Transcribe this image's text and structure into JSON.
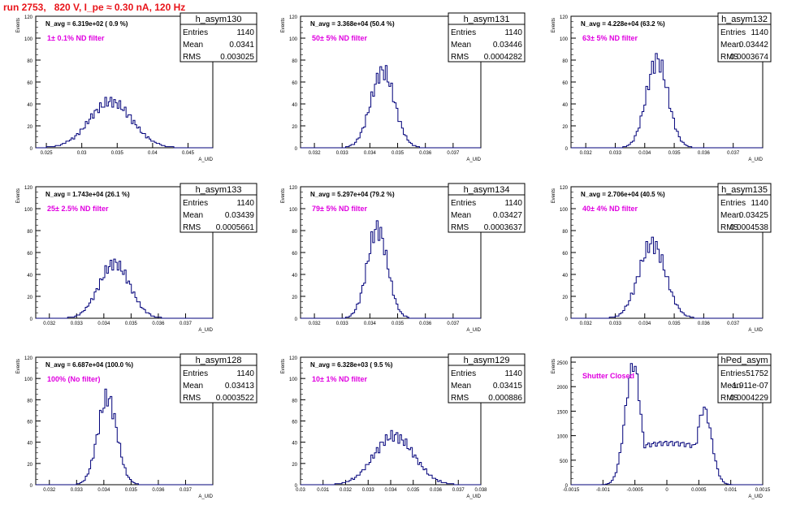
{
  "run_title": "run 2753,   820 V, I_pe ≈ 0.30 nA, 120 Hz",
  "colors": {
    "title": "#e8141a",
    "hist": "#00007a",
    "filter_label": "#e000e0",
    "frame": "#000000"
  },
  "y_axis_label": "Events",
  "x_axis_label": "A_UID",
  "stat_labels": {
    "entries": "Entries",
    "mean": "Mean",
    "rms": "RMS"
  },
  "chart_data": [
    {
      "type": "bar",
      "name": "h_asym130",
      "navg": "N_avg = 6.319e+02 ( 0.9 %)",
      "filter": "1± 0.1% ND filter",
      "entries": "1140",
      "mean": "0.0341",
      "rms": "0.003025",
      "xlim": [
        0.0235,
        0.0485
      ],
      "ylim": [
        0,
        120
      ],
      "xticks": [
        0.025,
        0.03,
        0.035,
        0.04,
        0.045
      ],
      "xtick_labels": [
        "0.025",
        "0.03",
        "0.035",
        "0.04",
        "0.045"
      ],
      "yticks": [
        0,
        20,
        40,
        60,
        80,
        100,
        120
      ],
      "dist": {
        "type": "gauss",
        "mean": 0.0341,
        "sigma": 0.003025,
        "peak": 42,
        "nbins": 100
      }
    },
    {
      "type": "bar",
      "name": "h_asym131",
      "navg": "N_avg = 3.368e+04 (50.4 %)",
      "filter": "50± 5% ND filter",
      "entries": "1140",
      "mean": "0.03446",
      "rms": "0.0004282",
      "xlim": [
        0.0315,
        0.038
      ],
      "ylim": [
        0,
        120
      ],
      "xticks": [
        0.032,
        0.033,
        0.034,
        0.035,
        0.036,
        0.037
      ],
      "xtick_labels": [
        "0.032",
        "0.033",
        "0.034",
        "0.035",
        "0.036",
        "0.037"
      ],
      "yticks": [
        0,
        20,
        40,
        60,
        80,
        100,
        120
      ],
      "dist": {
        "type": "gauss",
        "mean": 0.03446,
        "sigma": 0.0004282,
        "peak": 70,
        "nbins": 100
      }
    },
    {
      "type": "bar",
      "name": "h_asym132",
      "navg": "N_avg = 4.228e+04 (63.2 %)",
      "filter": "63± 5% ND filter",
      "entries": "1140",
      "mean": "0.03442",
      "rms": "0.0003674",
      "xlim": [
        0.0315,
        0.038
      ],
      "ylim": [
        0,
        120
      ],
      "xticks": [
        0.032,
        0.033,
        0.034,
        0.035,
        0.036,
        0.037
      ],
      "xtick_labels": [
        "0.032",
        "0.033",
        "0.034",
        "0.035",
        "0.036",
        "0.037"
      ],
      "yticks": [
        0,
        20,
        40,
        60,
        80,
        100,
        120
      ],
      "dist": {
        "type": "gauss",
        "mean": 0.03442,
        "sigma": 0.0003674,
        "peak": 80,
        "nbins": 100
      }
    },
    {
      "type": "bar",
      "name": "h_asym133",
      "navg": "N_avg = 1.743e+04 (26.1 %)",
      "filter": "25± 2.5% ND filter",
      "entries": "1140",
      "mean": "0.03439",
      "rms": "0.0005661",
      "xlim": [
        0.0315,
        0.038
      ],
      "ylim": [
        0,
        120
      ],
      "xticks": [
        0.032,
        0.033,
        0.034,
        0.035,
        0.036,
        0.037
      ],
      "xtick_labels": [
        "0.032",
        "0.033",
        "0.034",
        "0.035",
        "0.036",
        "0.037"
      ],
      "yticks": [
        0,
        20,
        40,
        60,
        80,
        100,
        120
      ],
      "dist": {
        "type": "gauss",
        "mean": 0.03439,
        "sigma": 0.0005661,
        "peak": 50,
        "nbins": 100
      }
    },
    {
      "type": "bar",
      "name": "h_asym134",
      "navg": "N_avg = 5.297e+04 (79.2 %)",
      "filter": "79± 5% ND filter",
      "entries": "1140",
      "mean": "0.03427",
      "rms": "0.0003637",
      "xlim": [
        0.0315,
        0.038
      ],
      "ylim": [
        0,
        120
      ],
      "xticks": [
        0.032,
        0.033,
        0.034,
        0.035,
        0.036,
        0.037
      ],
      "xtick_labels": [
        "0.032",
        "0.033",
        "0.034",
        "0.035",
        "0.036",
        "0.037"
      ],
      "yticks": [
        0,
        20,
        40,
        60,
        80,
        100,
        120
      ],
      "dist": {
        "type": "gauss",
        "mean": 0.03427,
        "sigma": 0.0003637,
        "peak": 82,
        "nbins": 100
      }
    },
    {
      "type": "bar",
      "name": "h_asym135",
      "navg": "N_avg = 2.706e+04 (40.5 %)",
      "filter": "40± 4% ND filter",
      "entries": "1140",
      "mean": "0.03425",
      "rms": "0.0004538",
      "xlim": [
        0.0315,
        0.038
      ],
      "ylim": [
        0,
        120
      ],
      "xticks": [
        0.032,
        0.033,
        0.034,
        0.035,
        0.036,
        0.037
      ],
      "xtick_labels": [
        "0.032",
        "0.033",
        "0.034",
        "0.035",
        "0.036",
        "0.037"
      ],
      "yticks": [
        0,
        20,
        40,
        60,
        80,
        100,
        120
      ],
      "dist": {
        "type": "gauss",
        "mean": 0.03425,
        "sigma": 0.0004538,
        "peak": 68,
        "nbins": 100
      }
    },
    {
      "type": "bar",
      "name": "h_asym128",
      "navg": "N_avg = 6.687e+04 (100.0 %)",
      "filter": "100% (No filter)",
      "entries": "1140",
      "mean": "0.03413",
      "rms": "0.0003522",
      "xlim": [
        0.0315,
        0.038
      ],
      "ylim": [
        0,
        120
      ],
      "xticks": [
        0.032,
        0.033,
        0.034,
        0.035,
        0.036,
        0.037
      ],
      "xtick_labels": [
        "0.032",
        "0.033",
        "0.034",
        "0.035",
        "0.036",
        "0.037"
      ],
      "yticks": [
        0,
        20,
        40,
        60,
        80,
        100,
        120
      ],
      "dist": {
        "type": "gauss",
        "mean": 0.03413,
        "sigma": 0.0003522,
        "peak": 82,
        "nbins": 100
      }
    },
    {
      "type": "bar",
      "name": "h_asym129",
      "navg": "N_avg = 6.328e+03 ( 9.5 %)",
      "filter": "10± 1% ND filter",
      "entries": "1140",
      "mean": "0.03415",
      "rms": "0.000886",
      "xlim": [
        0.03,
        0.038
      ],
      "ylim": [
        0,
        120
      ],
      "xticks": [
        0.03,
        0.031,
        0.032,
        0.033,
        0.034,
        0.035,
        0.036,
        0.037,
        0.038
      ],
      "xtick_labels": [
        "0.03",
        "0.031",
        "0.032",
        "0.033",
        "0.034",
        "0.035",
        "0.036",
        "0.037",
        "0.038"
      ],
      "yticks": [
        0,
        20,
        40,
        60,
        80,
        100,
        120
      ],
      "dist": {
        "type": "gauss",
        "mean": 0.03415,
        "sigma": 0.000886,
        "peak": 46,
        "nbins": 100
      }
    },
    {
      "type": "bar",
      "name": "hPed_asym",
      "navg": "",
      "filter": "Shutter Closed",
      "entries": "51752",
      "mean": "-1.911e-07",
      "rms": "0.0004229",
      "xlim": [
        -0.0015,
        0.0015
      ],
      "ylim": [
        0,
        2600
      ],
      "xticks": [
        -0.0015,
        -0.001,
        -0.0005,
        0,
        0.0005,
        0.001,
        0.0015
      ],
      "xtick_labels": [
        "-0.0015",
        "-0.001",
        "-0.0005",
        "0",
        "0.0005",
        "0.001",
        "0.0015"
      ],
      "yticks": [
        0,
        500,
        1000,
        1500,
        2000,
        2500
      ],
      "dist": {
        "type": "pedestal",
        "peak_left": 2450,
        "peak_right": 1550,
        "valley": 750,
        "nbins": 100
      }
    }
  ]
}
